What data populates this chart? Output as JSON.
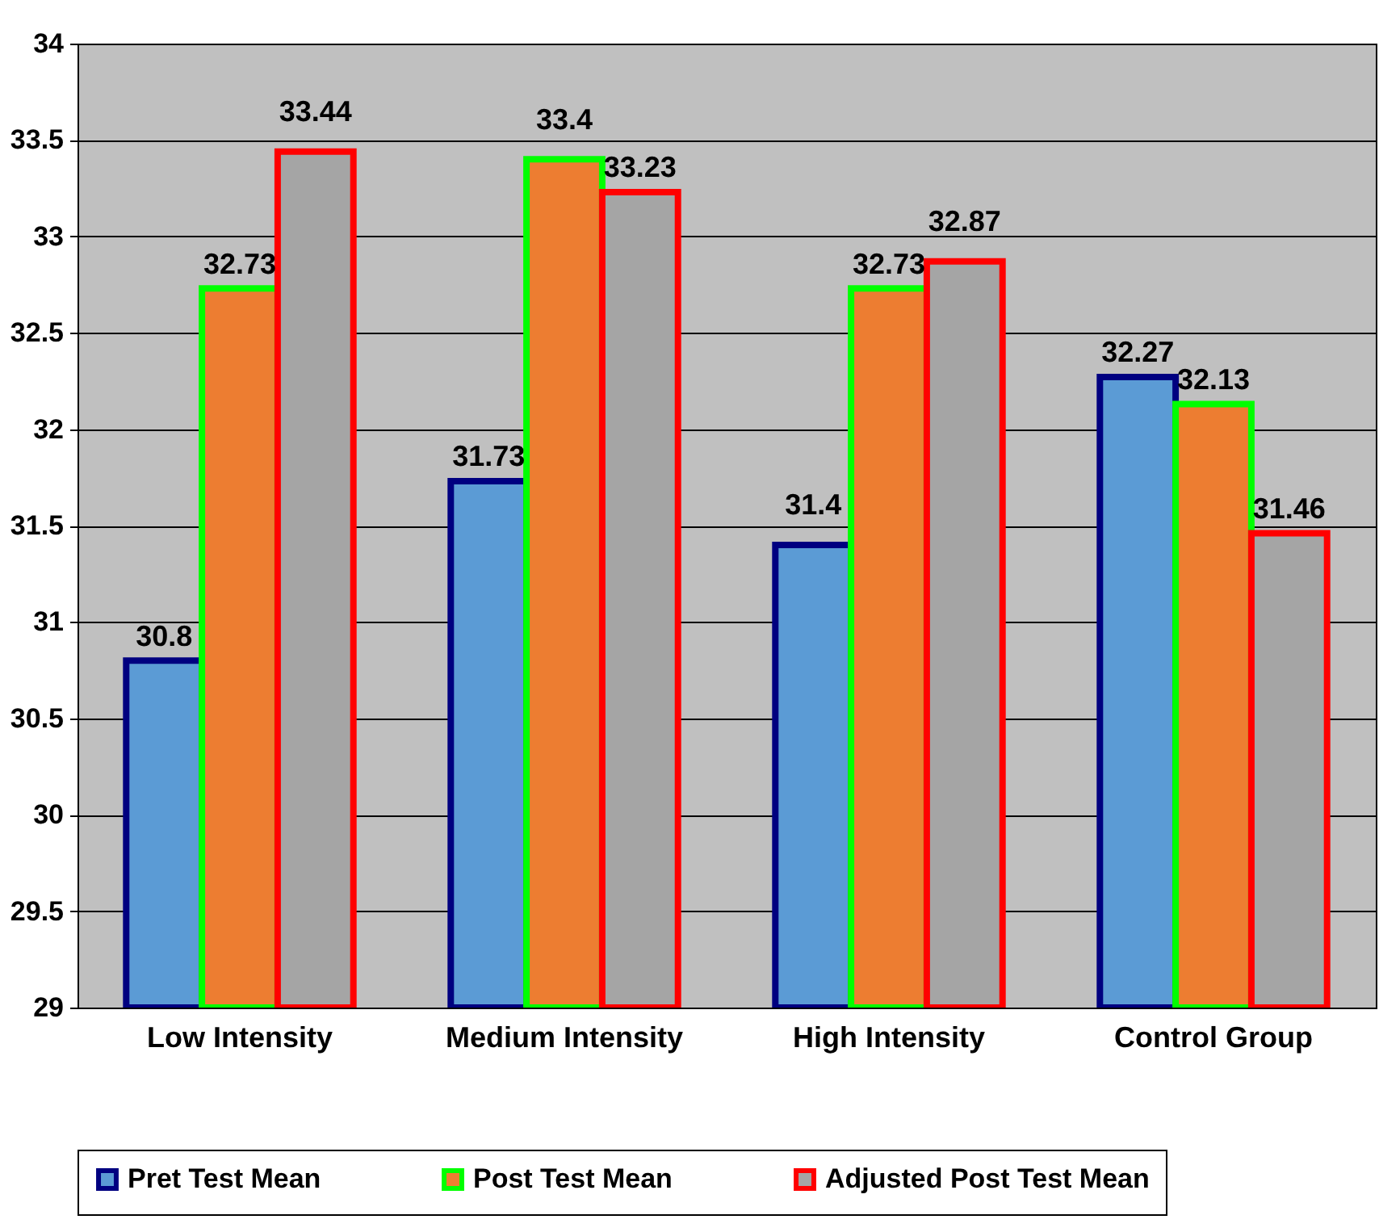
{
  "chart_data": {
    "type": "bar",
    "categories": [
      "Low Intensity",
      "Medium Intensity",
      "High Intensity",
      "Control Group"
    ],
    "series": [
      {
        "name": "Pret Test Mean",
        "color": "#5b9bd5",
        "values": [
          30.8,
          31.73,
          31.4,
          32.27
        ]
      },
      {
        "name": "Post Test Mean",
        "color": "#ed7d31",
        "values": [
          32.73,
          33.4,
          32.73,
          32.13
        ]
      },
      {
        "name": "Adjusted Post Test Mean",
        "color": "#a5a5a5",
        "values": [
          33.44,
          33.23,
          32.87,
          31.46
        ]
      }
    ],
    "ylim": [
      29,
      34
    ],
    "yticks": [
      29,
      29.5,
      30,
      30.5,
      31,
      31.5,
      32,
      32.5,
      33,
      33.5,
      34
    ],
    "grid": "y",
    "legend": "bottom",
    "data_labels": true
  }
}
